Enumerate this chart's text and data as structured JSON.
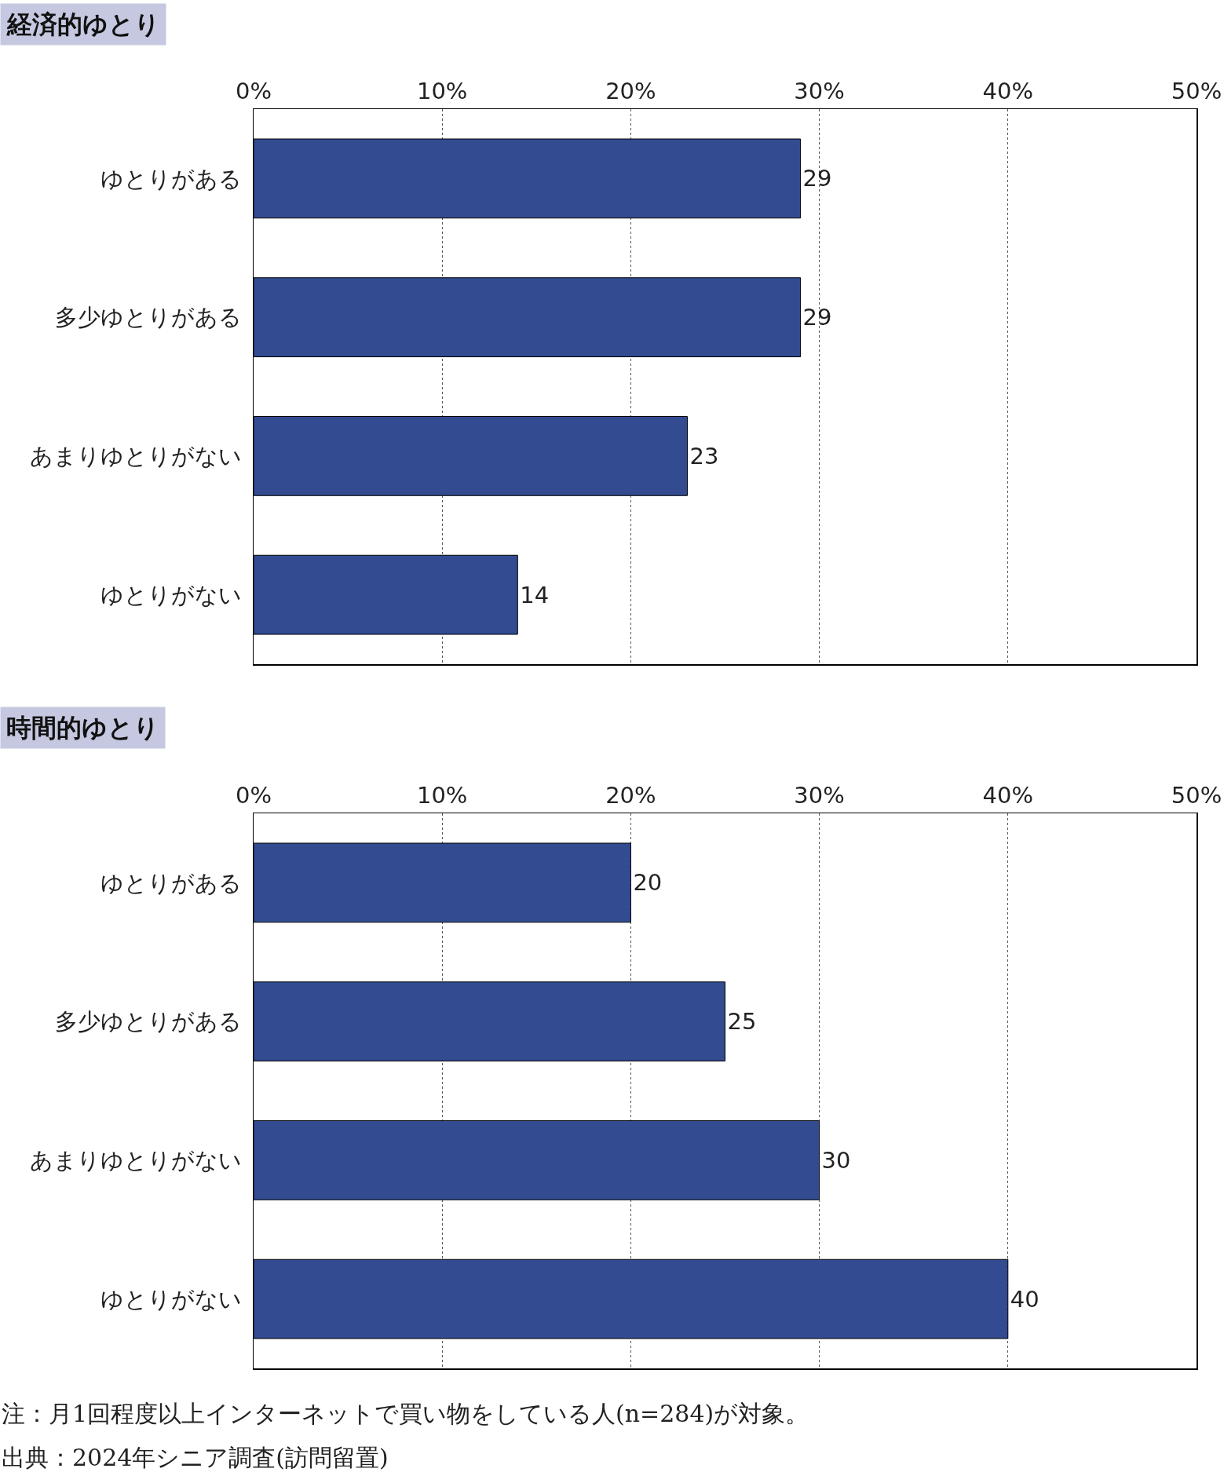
{
  "chart_data": [
    {
      "type": "bar",
      "orientation": "horizontal",
      "title": "経済的ゆとり",
      "categories": [
        "ゆとりがある",
        "多少ゆとりがある",
        "あまりゆとりがない",
        "ゆとりがない"
      ],
      "values": [
        29,
        29,
        23,
        14
      ],
      "color": "#324b91",
      "xlim": [
        0,
        50
      ],
      "xticks": [
        {
          "value": 0,
          "label": "0%"
        },
        {
          "value": 10,
          "label": "10%"
        },
        {
          "value": 20,
          "label": "20%"
        },
        {
          "value": 30,
          "label": "30%"
        },
        {
          "value": 40,
          "label": "40%"
        },
        {
          "value": 50,
          "label": "50%"
        }
      ],
      "grid": "x",
      "data_labels": true
    },
    {
      "type": "bar",
      "orientation": "horizontal",
      "title": "時間的ゆとり",
      "categories": [
        "ゆとりがある",
        "多少ゆとりがある",
        "あまりゆとりがない",
        "ゆとりがない"
      ],
      "values": [
        20,
        25,
        30,
        40
      ],
      "color": "#324b91",
      "xlim": [
        0,
        50
      ],
      "xticks": [
        {
          "value": 0,
          "label": "0%"
        },
        {
          "value": 10,
          "label": "10%"
        },
        {
          "value": 20,
          "label": "20%"
        },
        {
          "value": 30,
          "label": "30%"
        },
        {
          "value": 40,
          "label": "40%"
        },
        {
          "value": 50,
          "label": "50%"
        }
      ],
      "grid": "x",
      "data_labels": true,
      "annotations": [
        "注：月1回程度以上インターネットで買い物をしている人(n=284)が対象。",
        "出典：2024年シニア調査(訪問留置)"
      ]
    }
  ]
}
